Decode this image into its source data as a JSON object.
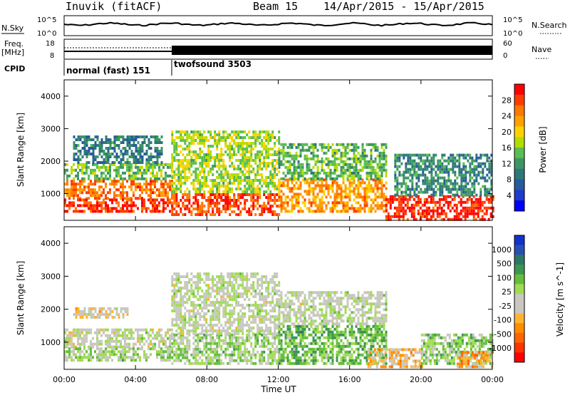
{
  "header": {
    "station": "Inuvik (fitACF)",
    "beam": "Beam 15",
    "date_range": "14/Apr/2015 - 15/Apr/2015"
  },
  "top_panels": {
    "nsky_label": "N.Sky",
    "nsky_ticks": [
      "10^5",
      "10^0"
    ],
    "nsearch_label": "N.Search",
    "nsearch_ticks": [
      "10^5",
      "10^0"
    ],
    "freq_label": "Freq.",
    "freq_unit": "[MHz]",
    "freq_ticks": [
      "18",
      "8"
    ],
    "nave_label": "Nave",
    "nave_ticks": [
      "60",
      "0"
    ],
    "cpid_label": "CPID",
    "cpid_segments": [
      {
        "name": "normal (fast) 151",
        "start_hour": 0,
        "end_hour": 6
      },
      {
        "name": "twofsound 3503",
        "start_hour": 6,
        "end_hour": 24
      }
    ]
  },
  "power_panel": {
    "ylabel": "Slant Range [km]",
    "yticks": [
      "4000",
      "3000",
      "2000",
      "1000"
    ],
    "colorbar_label": "Power [dB]",
    "colorbar_ticks": [
      "28",
      "24",
      "20",
      "16",
      "12",
      "8",
      "4"
    ],
    "colorbar_colors": [
      "#ff0000",
      "#ff3c00",
      "#ff7800",
      "#ffa000",
      "#ffd200",
      "#b4dc00",
      "#5abe50",
      "#3c9664",
      "#2d7878",
      "#285aa0",
      "#1e3cc8",
      "#0000ff"
    ]
  },
  "velocity_panel": {
    "ylabel": "Slant Range [km]",
    "yticks": [
      "4000",
      "3000",
      "2000",
      "1000"
    ],
    "colorbar_label": "Velocity [m s^-1]",
    "colorbar_ticks": [
      "1000",
      "500",
      "100",
      "25",
      "-25",
      "-100",
      "-500",
      "-1000"
    ],
    "colorbar_colors": [
      "#1432c8",
      "#2850b4",
      "#2d7864",
      "#3c9650",
      "#64be3c",
      "#a0dc50",
      "#c8c8c0",
      "#c8c8c0",
      "#ffb432",
      "#ff8c00",
      "#ff6400",
      "#ff3200",
      "#ff0000"
    ]
  },
  "xaxis": {
    "label": "Time UT",
    "ticks": [
      "00:00",
      "04:00",
      "08:00",
      "12:00",
      "16:00",
      "20:00",
      "00:00"
    ]
  },
  "chart_data": [
    {
      "type": "heatmap",
      "title": "Power",
      "xlabel": "Time UT",
      "ylabel": "Slant Range [km]",
      "xlim_hours": [
        0,
        24
      ],
      "ylim_km": [
        180,
        4500
      ],
      "colorbar": {
        "label": "Power [dB]",
        "range": [
          0,
          30
        ]
      },
      "regions": [
        {
          "t0": 0.0,
          "t1": 6.0,
          "r0": 900,
          "r1": 1500,
          "v": 24
        },
        {
          "t0": 0.0,
          "t1": 6.0,
          "r0": 500,
          "r1": 900,
          "v": 27
        },
        {
          "t0": 0.0,
          "t1": 6.0,
          "r0": 1500,
          "r1": 2000,
          "v": 14
        },
        {
          "t0": 0.5,
          "t1": 5.5,
          "r0": 2000,
          "r1": 2800,
          "v": 9
        },
        {
          "t0": 6.0,
          "t1": 12.0,
          "r0": 400,
          "r1": 1100,
          "v": 26
        },
        {
          "t0": 6.0,
          "t1": 12.0,
          "r0": 1100,
          "r1": 3000,
          "v": 16
        },
        {
          "t0": 12.0,
          "t1": 18.0,
          "r0": 500,
          "r1": 1500,
          "v": 22
        },
        {
          "t0": 12.0,
          "t1": 18.0,
          "r0": 1500,
          "r1": 2600,
          "v": 13
        },
        {
          "t0": 18.0,
          "t1": 24.0,
          "r0": 250,
          "r1": 1000,
          "v": 28
        },
        {
          "t0": 18.5,
          "t1": 24.0,
          "r0": 1000,
          "r1": 2300,
          "v": 10
        }
      ]
    },
    {
      "type": "heatmap",
      "title": "Velocity",
      "xlabel": "Time UT",
      "ylabel": "Slant Range [km]",
      "xlim_hours": [
        0,
        24
      ],
      "ylim_km": [
        180,
        4500
      ],
      "colorbar": {
        "label": "Velocity [m s^-1]",
        "range": [
          -1000,
          1000
        ]
      },
      "regions": [
        {
          "t0": 0.0,
          "t1": 6.0,
          "r0": 900,
          "r1": 1500,
          "v": 0
        },
        {
          "t0": 0.0,
          "t1": 6.0,
          "r0": 500,
          "r1": 900,
          "v": 150
        },
        {
          "t0": 0.5,
          "t1": 3.5,
          "r0": 1800,
          "r1": 2100,
          "v": -150
        },
        {
          "t0": 6.0,
          "t1": 12.0,
          "r0": 400,
          "r1": 1300,
          "v": 150
        },
        {
          "t0": 6.0,
          "t1": 12.0,
          "r0": 1300,
          "r1": 3200,
          "v": 0
        },
        {
          "t0": 12.0,
          "t1": 18.0,
          "r0": 400,
          "r1": 1600,
          "v": 300
        },
        {
          "t0": 12.0,
          "t1": 18.0,
          "r0": 1600,
          "r1": 2600,
          "v": 10
        },
        {
          "t0": 17.0,
          "t1": 20.0,
          "r0": 300,
          "r1": 900,
          "v": -300
        },
        {
          "t0": 20.0,
          "t1": 24.0,
          "r0": 400,
          "r1": 1300,
          "v": 200
        },
        {
          "t0": 22.0,
          "t1": 24.0,
          "r0": 300,
          "r1": 800,
          "v": -400
        }
      ]
    }
  ]
}
